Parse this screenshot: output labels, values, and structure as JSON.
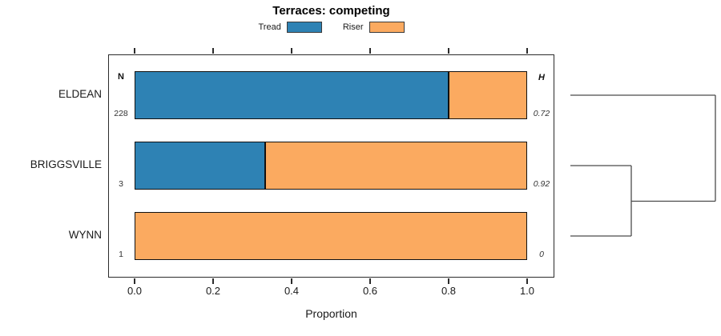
{
  "title": "Terraces: competing",
  "legend": {
    "items": [
      {
        "label": "Tread",
        "color": "#2e82b4"
      },
      {
        "label": "Riser",
        "color": "#fbaa60"
      }
    ]
  },
  "columns": {
    "n_header": "N",
    "h_header": "H"
  },
  "axis": {
    "xlabel": "Proportion",
    "tick_labels": [
      "0.0",
      "0.2",
      "0.4",
      "0.6",
      "0.8",
      "1.0"
    ],
    "tick_values": [
      0,
      0.2,
      0.4,
      0.6,
      0.8,
      1.0
    ]
  },
  "chart_data": {
    "type": "bar",
    "orientation": "horizontal",
    "stacked": true,
    "title": "Terraces: competing",
    "xlabel": "Proportion",
    "xlim": [
      0,
      1
    ],
    "legend_position": "top",
    "grid": false,
    "categories": [
      "ELDEAN",
      "BRIGGSVILLE",
      "WYNN"
    ],
    "n_values": [
      "228",
      "3",
      "1"
    ],
    "h_values": [
      "0.72",
      "0.92",
      "0"
    ],
    "series": [
      {
        "name": "Tread",
        "color": "#2e82b4",
        "values": [
          0.8,
          0.333,
          0
        ]
      },
      {
        "name": "Riser",
        "color": "#fbaa60",
        "values": [
          0.2,
          0.667,
          1.0
        ]
      }
    ],
    "dendrogram": {
      "position": "right",
      "leaves_top_to_bottom": [
        "ELDEAN",
        "BRIGGSVILLE",
        "WYNN"
      ],
      "merges": [
        {
          "members": [
            "BRIGGSVILLE",
            "WYNN"
          ],
          "relative_height": 0.42
        },
        {
          "members": [
            "ELDEAN",
            "BRIGGSVILLE+WYNN"
          ],
          "relative_height": 1.0
        }
      ]
    }
  }
}
